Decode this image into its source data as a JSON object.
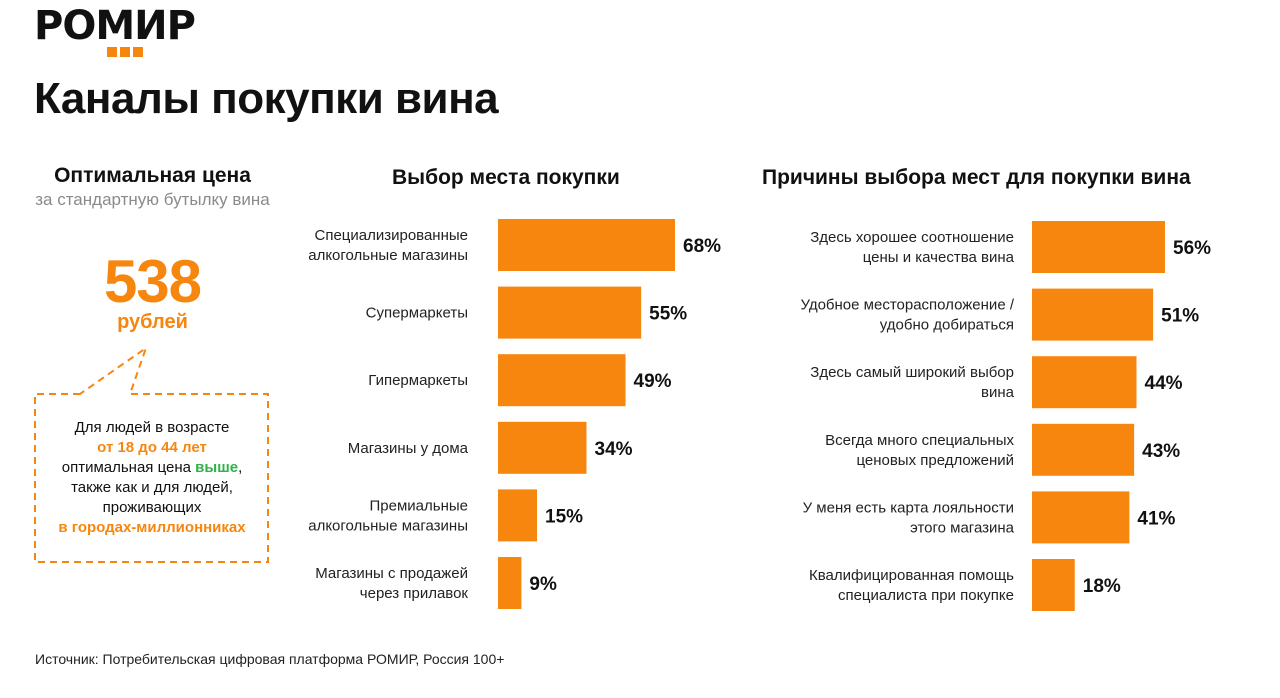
{
  "logo": {
    "text": "РОМИР"
  },
  "title": "Каналы покупки вина",
  "left_panel": {
    "heading": "Оптимальная цена",
    "subheading": "за стандартную бутылку вина",
    "price": "538",
    "price_unit": "рублей",
    "callout": {
      "line1": "Для людей в возрасте",
      "age_highlight": "от 18 до 44 лет",
      "line3_prefix": "оптимальная цена",
      "line3_highlight": "выше",
      "line3_suffix": ",",
      "line4": "также как и для людей,",
      "line5": "проживающих",
      "city_highlight": "в городах-миллионниках"
    }
  },
  "colors": {
    "bar": "#f7860f",
    "accent": "#f7860f",
    "green": "#2fb24a"
  },
  "chart_data": [
    {
      "type": "bar",
      "orientation": "horizontal",
      "title": "Выбор места покупки",
      "categories": [
        "Специализированные алкогольные магазины",
        "Супермаркеты",
        "Гипермаркеты",
        "Магазины у дома",
        "Премиальные алкогольные магазины",
        "Магазины с продажей через прилавок"
      ],
      "category_lines": [
        [
          "Специализированные",
          "алкогольные магазины"
        ],
        [
          "Супермаркеты"
        ],
        [
          "Гипермаркеты"
        ],
        [
          "Магазины у дома"
        ],
        [
          "Премиальные",
          "алкогольные магазины"
        ],
        [
          "Магазины с продажей",
          "через прилавок"
        ]
      ],
      "values": [
        68,
        55,
        49,
        34,
        15,
        9
      ],
      "value_labels": [
        "68%",
        "55%",
        "49%",
        "34%",
        "15%",
        "9%"
      ],
      "unit": "%",
      "grid": false
    },
    {
      "type": "bar",
      "orientation": "horizontal",
      "title": "Причины выбора мест для покупки вина",
      "categories": [
        "Здесь хорошее соотношение цены и качества вина",
        "Удобное месторасположение / удобно добираться",
        "Здесь самый широкий выбор вина",
        "Всегда много специальных ценовых предложений",
        "У меня есть карта лояльности этого магазина",
        "Квалифицированная помощь специалиста при покупке"
      ],
      "category_lines": [
        [
          "Здесь хорошее соотношение",
          "цены и качества вина"
        ],
        [
          "Удобное месторасположение /",
          "удобно добираться"
        ],
        [
          "Здесь самый широкий выбор",
          "вина"
        ],
        [
          "Всегда много специальных",
          "ценовых предложений"
        ],
        [
          "У меня есть карта лояльности",
          "этого магазина"
        ],
        [
          "Квалифицированная помощь",
          "специалиста при покупке"
        ]
      ],
      "values": [
        56,
        51,
        44,
        43,
        41,
        18
      ],
      "value_labels": [
        "56%",
        "51%",
        "44%",
        "43%",
        "41%",
        "18%"
      ],
      "unit": "%",
      "grid": false
    }
  ],
  "source": "Источник: Потребительская цифровая платформа РОМИР, Россия 100+"
}
